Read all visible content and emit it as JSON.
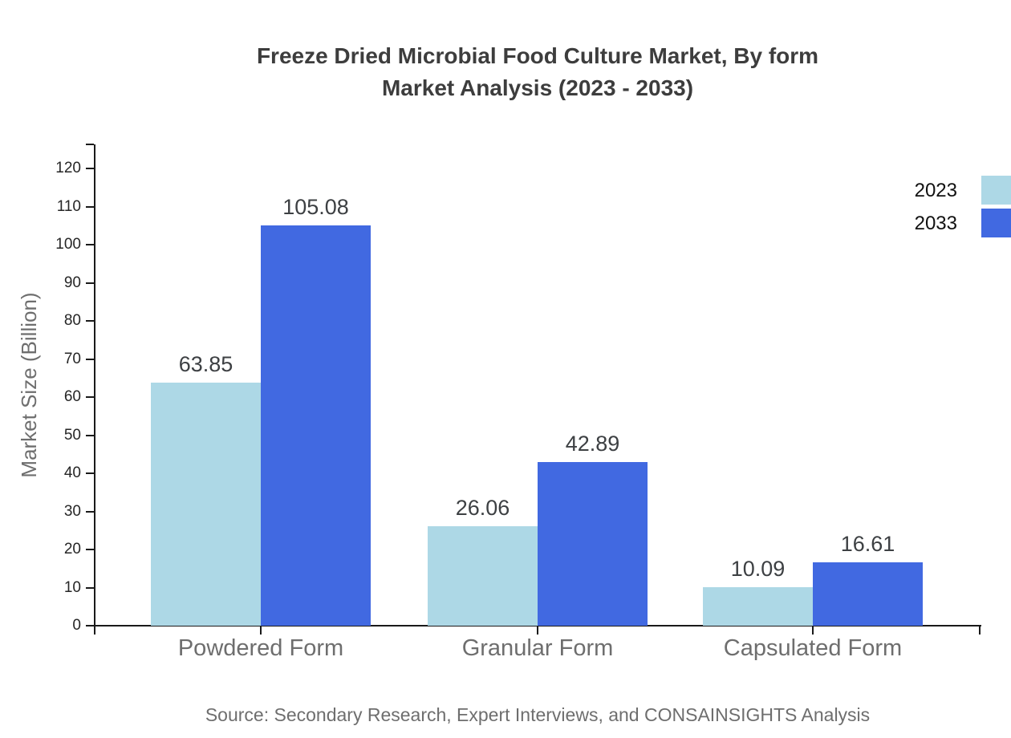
{
  "title": {
    "line1": "Freeze Dried Microbial Food Culture Market, By form",
    "line2": "Market Analysis (2023 - 2033)"
  },
  "source_note": "Source: Secondary Research, Expert Interviews, and CONSAINSIGHTS Analysis",
  "chart_data": {
    "type": "bar",
    "title": "Freeze Dried Microbial Food Culture Market, By form Market Analysis (2023 - 2033)",
    "categories": [
      "Powdered Form",
      "Granular Form",
      "Capsulated Form"
    ],
    "series": [
      {
        "name": "2023",
        "color": "#add8e6",
        "values": [
          63.85,
          26.06,
          10.09
        ]
      },
      {
        "name": "2033",
        "color": "#4169e1",
        "values": [
          105.08,
          42.89,
          16.61
        ]
      }
    ],
    "xlabel": "",
    "ylabel": "Market Size (Billion)",
    "ylim": [
      0,
      126
    ],
    "yticks": [
      0,
      10,
      20,
      30,
      40,
      50,
      60,
      70,
      80,
      90,
      100,
      110,
      120
    ],
    "grid": false,
    "legend_position": "top-right",
    "value_labels": true
  },
  "colors": {
    "series_2023": "#add8e6",
    "series_2033": "#4169e1",
    "title_text": "#3d3d3d",
    "axis_line": "#1a1a1a",
    "tick_label_text": "#262626",
    "category_label_text": "#6e6e6e",
    "muted_text": "#6e6e6e",
    "legend_text": "#111111",
    "background": "#ffffff"
  }
}
